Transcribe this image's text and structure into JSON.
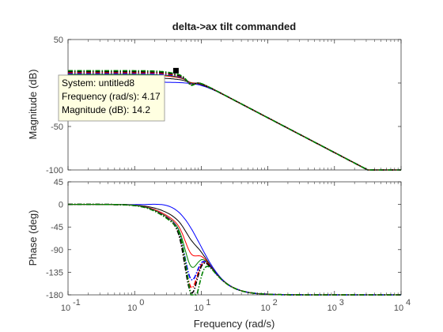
{
  "chart_data": {
    "type": "line",
    "title": "delta->ax tilt commanded",
    "xlabel": "Frequency  (rad/s)",
    "xscale": "log",
    "xlim": [
      0.1,
      10000
    ],
    "x_ticks": [
      {
        "label": "10",
        "exp": "-1"
      },
      {
        "label": "10",
        "exp": "0"
      },
      {
        "label": "10",
        "exp": "1"
      },
      {
        "label": "10",
        "exp": "2"
      },
      {
        "label": "10",
        "exp": "3"
      },
      {
        "label": "10",
        "exp": "4"
      }
    ],
    "grid": false,
    "panels": [
      {
        "name": "magnitude",
        "ylabel": "Magnitude (dB)",
        "ylim": [
          -100,
          50
        ],
        "y_ticks": [
          "50",
          "0",
          "-50",
          "-100"
        ],
        "tick_values": [
          50,
          0,
          -50,
          -100
        ]
      },
      {
        "name": "phase",
        "ylabel": "Phase (deg)",
        "ylim": [
          -180,
          45
        ],
        "y_ticks": [
          "45",
          "0",
          "-45",
          "-90",
          "-135",
          "-180"
        ],
        "tick_values": [
          45,
          0,
          -45,
          -90,
          -135,
          -180
        ]
      }
    ],
    "series": [
      {
        "color": "#0000ff",
        "dash": "solid",
        "mag_dc": 1,
        "mag_notch": 0,
        "phase_dc": 0,
        "phase_bump": 12,
        "phase_dip_center": 0,
        "phase_dip": 0
      },
      {
        "color": "#000000",
        "dash": "solid",
        "mag_dc": 6,
        "mag_notch": -1,
        "phase_dc": 0,
        "phase_bump": -5,
        "phase_dip_center": 7,
        "phase_dip": 10
      },
      {
        "color": "#ff0000",
        "dash": "solid",
        "mag_dc": 9,
        "mag_notch": -2,
        "phase_dc": 0,
        "phase_bump": -12,
        "phase_dip_center": 7,
        "phase_dip": 32
      },
      {
        "color": "#008000",
        "dash": "solid",
        "mag_dc": 10,
        "mag_notch": -3,
        "phase_dc": 0,
        "phase_bump": -15,
        "phase_dip_center": 7,
        "phase_dip": 55
      },
      {
        "color": "#0000ff",
        "dash": "dashdot",
        "mag_dc": 11,
        "mag_notch": -4,
        "phase_dc": 0,
        "phase_bump": -16,
        "phase_dip_center": 7,
        "phase_dip": 80
      },
      {
        "color": "#ff0000",
        "dash": "dashdot",
        "mag_dc": 12,
        "mag_notch": -5,
        "phase_dc": 0,
        "phase_bump": -17,
        "phase_dip_center": 7,
        "phase_dip": 95
      },
      {
        "color": "#000000",
        "dash": "dashdot",
        "mag_dc": 13,
        "mag_notch": -6,
        "phase_dc": 0,
        "phase_bump": -18,
        "phase_dip_center": 7,
        "phase_dip": 105
      },
      {
        "color": "#008000",
        "dash": "dashdot",
        "mag_dc": 14.2,
        "mag_notch": -7,
        "phase_dc": 0,
        "phase_bump": -19,
        "phase_dip_center": 7.5,
        "phase_dip": 115
      }
    ],
    "datatip": {
      "system": "System: untitled8",
      "frequency": "Frequency (rad/s): 4.17",
      "magnitude": "Magnitude (dB): 14.2",
      "x": 4.17,
      "y": 14.2
    }
  }
}
